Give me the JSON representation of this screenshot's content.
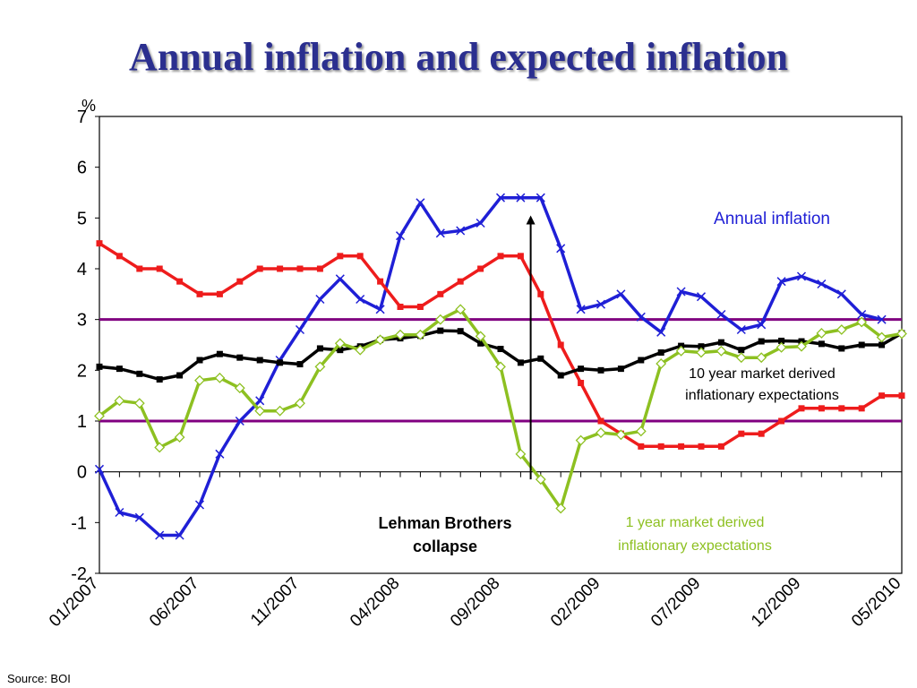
{
  "slide": {
    "title": "Annual inflation and expected inflation",
    "source": "Source: BOI"
  },
  "chart_data": {
    "type": "line",
    "y_unit": "%",
    "ylim": [
      -2,
      7
    ],
    "yticks": [
      -2,
      -1,
      0,
      1,
      2,
      3,
      4,
      5,
      6,
      7
    ],
    "x_tick_labels": [
      "01/2007",
      "06/2007",
      "11/2007",
      "04/2008",
      "09/2008",
      "02/2009",
      "07/2009",
      "12/2009",
      "05/2010"
    ],
    "reference_lines": [
      {
        "y": 3,
        "color": "#800080"
      },
      {
        "y": 1,
        "color": "#800080"
      }
    ],
    "series": [
      {
        "name": "Annual inflation",
        "color": "#1f1fd6",
        "marker": "x",
        "values": [
          0.05,
          -0.8,
          -0.9,
          -1.25,
          -1.25,
          -0.65,
          0.35,
          1.0,
          1.4,
          2.2,
          2.8,
          3.4,
          3.8,
          3.4,
          3.2,
          4.65,
          5.3,
          4.7,
          4.75,
          4.9,
          5.4,
          5.4,
          5.4,
          4.4,
          3.2,
          3.3,
          3.5,
          3.05,
          2.75,
          3.55,
          3.45,
          3.1,
          2.8,
          2.9,
          3.75,
          3.85,
          3.7,
          3.5,
          3.1,
          3.0
        ]
      },
      {
        "name": "",
        "color": "#ee1c1c",
        "marker": "square",
        "values": [
          4.5,
          4.25,
          4.0,
          4.0,
          3.75,
          3.5,
          3.5,
          3.75,
          4.0,
          4.0,
          4.0,
          4.0,
          4.25,
          4.25,
          3.75,
          3.25,
          3.25,
          3.5,
          3.75,
          4.0,
          4.25,
          4.25,
          3.5,
          2.5,
          1.75,
          1.0,
          0.75,
          0.5,
          0.5,
          0.5,
          0.5,
          0.5,
          0.75,
          0.75,
          1.0,
          1.25,
          1.25,
          1.25,
          1.25,
          1.5,
          1.5
        ]
      },
      {
        "name": "10 year market derived inflationary expectations",
        "color": "#000000",
        "marker": "square",
        "values": [
          2.07,
          2.03,
          1.93,
          1.82,
          1.9,
          2.2,
          2.32,
          2.25,
          2.2,
          2.15,
          2.12,
          2.43,
          2.4,
          2.47,
          2.6,
          2.63,
          2.68,
          2.78,
          2.77,
          2.53,
          2.42,
          2.15,
          2.23,
          1.9,
          2.03,
          2.0,
          2.03,
          2.2,
          2.35,
          2.48,
          2.47,
          2.55,
          2.4,
          2.57,
          2.58,
          2.57,
          2.52,
          2.43,
          2.5,
          2.5,
          2.73
        ]
      },
      {
        "name": "1 year market derived inflationary expectations",
        "color": "#8dc021",
        "marker": "diamond",
        "values": [
          1.1,
          1.4,
          1.35,
          0.48,
          0.68,
          1.8,
          1.85,
          1.65,
          1.2,
          1.2,
          1.35,
          2.07,
          2.53,
          2.4,
          2.6,
          2.7,
          2.7,
          3.0,
          3.2,
          2.67,
          2.07,
          0.35,
          -0.15,
          -0.72,
          0.62,
          0.77,
          0.73,
          0.8,
          2.13,
          2.38,
          2.35,
          2.38,
          2.25,
          2.25,
          2.45,
          2.47,
          2.73,
          2.8,
          2.95,
          2.65,
          2.72
        ]
      }
    ],
    "labels": {
      "y_unit": "%",
      "annual_inflation": "Annual inflation",
      "ten_year_line1": "10 year market derived",
      "ten_year_line2": "inflationary expectations",
      "one_year_line1": "1 year market derived",
      "one_year_line2": "inflationary expectations",
      "lehman_line1": "Lehman Brothers",
      "lehman_line2": "collapse"
    },
    "annotation_arrow": {
      "x_index": 21,
      "y_from": -0.15,
      "y_to": 5.05
    }
  }
}
